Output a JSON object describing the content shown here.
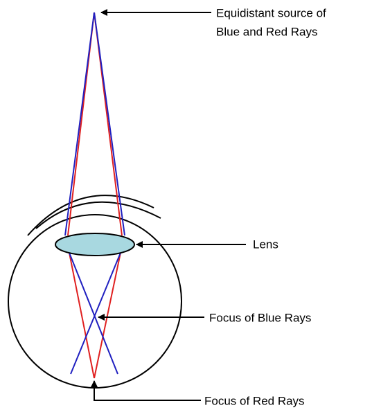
{
  "labels": {
    "source": [
      "Equidistant source of",
      "Blue and Red Rays"
    ],
    "lens": "Lens",
    "blue_focus": "Focus of Blue Rays",
    "red_focus": "Focus of Red Rays"
  }
}
